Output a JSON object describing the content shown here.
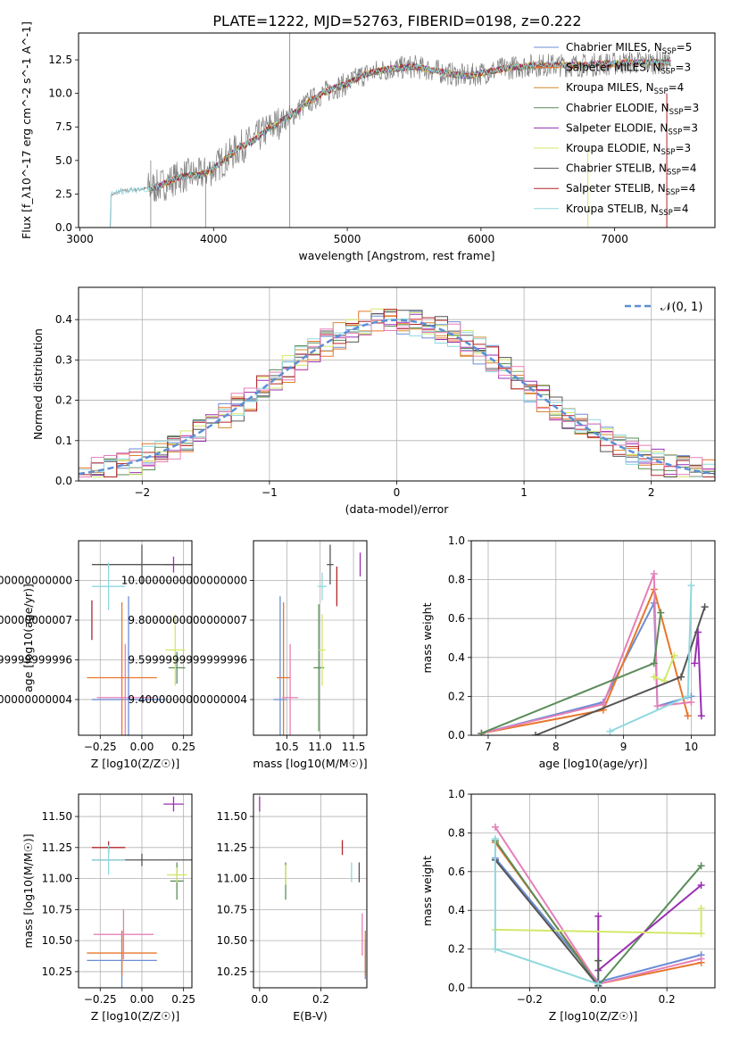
{
  "figure_title": "PLATE=1222, MJD=52763, FIBERID=0198, z=0.222",
  "colors": {
    "Chabrier MILES": "#6c8ed4",
    "Salpeter MILES": "#e8762b",
    "Kroupa MILES": "#d4872f",
    "Chabrier ELODIE": "#5b8c5a",
    "Salpeter ELODIE": "#9a2fb3",
    "Kroupa ELODIE": "#d2e86a",
    "Chabrier STELIB": "#555555",
    "Salpeter STELIB": "#b3262b",
    "Kroupa STELIB": "#8fd8e0",
    "pink": "#e57fb8",
    "grey": "#808080"
  },
  "chart_data": [
    {
      "id": "spectrum",
      "type": "line",
      "xlabel": "wavelength [Angstrom, rest frame]",
      "ylabel": "Flux [f_λ10^-17 erg cm^-2 s^-1 A^-1]",
      "xlim": [
        2990,
        7750
      ],
      "ylim": [
        0,
        14.5
      ],
      "xticks": [
        3000,
        4000,
        5000,
        6000,
        7000
      ],
      "yticks": [
        0.0,
        2.5,
        5.0,
        7.5,
        10.0,
        12.5
      ],
      "grid": false,
      "legend_position": "top-right",
      "legend": [
        "Chabrier MILES, N_SSP=5",
        "Salpeter MILES, N_SSP=3",
        "Kroupa MILES, N_SSP=4",
        "Chabrier ELODIE, N_SSP=3",
        "Salpeter ELODIE, N_SSP=3",
        "Kroupa ELODIE, N_SSP=3",
        "Chabrier STELIB, N_SSP=4",
        "Salpeter STELIB, N_SSP=4",
        "Kroupa STELIB, N_SSP=4"
      ],
      "observed_envelope": {
        "x": [
          3230,
          3300,
          3400,
          3500,
          3600,
          3700,
          3800,
          3900,
          4000,
          4100,
          4200,
          4300,
          4400,
          4500,
          4600,
          4700,
          4800,
          4900,
          5000,
          5100,
          5200,
          5300,
          5400,
          5500,
          5600,
          5700,
          5800,
          5900,
          6000,
          6100,
          6200,
          6300,
          6400,
          6500,
          6600,
          6700,
          6800,
          6900,
          7000,
          7100,
          7200,
          7300,
          7400
        ],
        "y": [
          2.4,
          2.7,
          2.8,
          2.9,
          3.1,
          3.6,
          3.9,
          3.9,
          4.4,
          5.2,
          6.0,
          6.5,
          7.3,
          7.9,
          8.5,
          9.3,
          9.9,
          10.4,
          10.7,
          11.3,
          11.6,
          11.8,
          11.9,
          12.0,
          11.8,
          11.6,
          11.4,
          11.3,
          11.5,
          11.7,
          11.9,
          12.0,
          12.1,
          12.1,
          12.1,
          12.1,
          12.1,
          12.2,
          12.2,
          12.3,
          12.3,
          12.3,
          12.3
        ]
      }
    },
    {
      "id": "residuals",
      "type": "line",
      "xlabel": "(data-model)/error",
      "ylabel": "Normed distribution",
      "xlim": [
        -2.5,
        2.5
      ],
      "ylim": [
        0,
        0.48
      ],
      "xticks": [
        -2,
        -1,
        0,
        1,
        2
      ],
      "yticks": [
        0.0,
        0.1,
        0.2,
        0.3,
        0.4
      ],
      "grid": true,
      "legend_position": "top-right",
      "legend": [
        "𝒩(0, 1)"
      ],
      "gaussian": {
        "mu": 0,
        "sigma": 1
      }
    },
    {
      "id": "age_vs_Z",
      "type": "scatter",
      "xlabel": "Z [log10(Z/Z☉)]",
      "ylabel": "age [log10(age/yr)]",
      "xlim": [
        -0.38,
        0.3
      ],
      "ylim": [
        9.22,
        10.2
      ],
      "xticks": [
        -0.25,
        0.0,
        0.25
      ],
      "yticks": [
        9.4,
        9.6,
        9.8,
        10.0
      ],
      "grid": true,
      "points": [
        {
          "c": "Chabrier MILES",
          "x": -0.08,
          "y": 9.4,
          "xerr": 0.22,
          "yerr": 0.52
        },
        {
          "c": "Salpeter MILES",
          "x": -0.12,
          "y": 9.51,
          "xerr": 0.21,
          "yerr": 0.38
        },
        {
          "c": "pink",
          "x": -0.1,
          "y": 9.41,
          "xerr": 0.17,
          "yerr": 0.27
        },
        {
          "c": "Chabrier ELODIE",
          "x": 0.21,
          "y": 9.56,
          "xerr": 0.05,
          "yerr": 0.08
        },
        {
          "c": "Salpeter ELODIE",
          "x": 0.19,
          "y": 10.08,
          "xerr": 0.06,
          "yerr": 0.04
        },
        {
          "c": "Kroupa ELODIE",
          "x": 0.2,
          "y": 9.65,
          "xerr": 0.06,
          "yerr": 0.18
        },
        {
          "c": "Chabrier STELIB",
          "x": 0.0,
          "y": 10.08,
          "xerr": 0.3,
          "yerr": 0.1
        },
        {
          "c": "Salpeter STELIB",
          "x": -0.3,
          "y": 9.8,
          "xerr": 0.0,
          "yerr": 0.1
        },
        {
          "c": "Kroupa STELIB",
          "x": -0.2,
          "y": 9.97,
          "xerr": 0.1,
          "yerr": 0.12
        }
      ]
    },
    {
      "id": "age_vs_mass",
      "type": "scatter",
      "xlabel": "mass [log10(M/M☉)]",
      "ylabel": "",
      "xlim": [
        10.0,
        11.7
      ],
      "ylim": [
        9.22,
        10.2
      ],
      "xticks": [
        10.5,
        11.0,
        11.5
      ],
      "yticks": [
        9.4,
        9.6,
        9.8,
        10.0
      ],
      "grid": true,
      "points": [
        {
          "c": "Chabrier MILES",
          "x": 10.4,
          "y": 9.4,
          "xerr": 0.1,
          "yerr": 0.52
        },
        {
          "c": "Salpeter MILES",
          "x": 10.45,
          "y": 9.51,
          "xerr": 0.1,
          "yerr": 0.38
        },
        {
          "c": "pink",
          "x": 10.55,
          "y": 9.41,
          "xerr": 0.12,
          "yerr": 0.27
        },
        {
          "c": "Chabrier ELODIE",
          "x": 10.98,
          "y": 9.56,
          "xerr": 0.08,
          "yerr": 0.32
        },
        {
          "c": "Salpeter ELODIE",
          "x": 11.6,
          "y": 10.08,
          "xerr": 0.0,
          "yerr": 0.06
        },
        {
          "c": "Kroupa ELODIE",
          "x": 11.03,
          "y": 9.65,
          "xerr": 0.05,
          "yerr": 0.18
        },
        {
          "c": "Chabrier STELIB",
          "x": 11.15,
          "y": 10.08,
          "xerr": 0.05,
          "yerr": 0.1
        },
        {
          "c": "Salpeter STELIB",
          "x": 11.25,
          "y": 9.97,
          "xerr": 0.0,
          "yerr": 0.1
        },
        {
          "c": "Kroupa STELIB",
          "x": 11.03,
          "y": 9.97,
          "xerr": 0.07,
          "yerr": 0.07
        }
      ]
    },
    {
      "id": "weight_vs_age",
      "type": "line",
      "xlabel": "age [log10(age/yr)]",
      "ylabel": "mass weight",
      "xlim": [
        6.75,
        10.35
      ],
      "ylim": [
        0,
        1.0
      ],
      "xticks": [
        7,
        8,
        9,
        10
      ],
      "yticks": [
        0.0,
        0.2,
        0.4,
        0.6,
        0.8,
        1.0
      ],
      "grid": true,
      "series": [
        {
          "c": "Chabrier MILES",
          "x": [
            6.9,
            8.7,
            9.45,
            9.5,
            10.0
          ],
          "y": [
            0.01,
            0.17,
            0.68,
            0.15,
            0.2
          ]
        },
        {
          "c": "Salpeter MILES",
          "x": [
            6.9,
            8.7,
            9.45,
            9.95
          ],
          "y": [
            0.01,
            0.13,
            0.75,
            0.1
          ]
        },
        {
          "c": "pink",
          "x": [
            6.9,
            8.7,
            9.45,
            9.5,
            10.0
          ],
          "y": [
            0.01,
            0.16,
            0.83,
            0.15,
            0.17
          ]
        },
        {
          "c": "Chabrier ELODIE",
          "x": [
            6.9,
            9.45,
            9.55
          ],
          "y": [
            0.01,
            0.37,
            0.63
          ]
        },
        {
          "c": "Salpeter ELODIE",
          "x": [
            10.05,
            10.1,
            10.15
          ],
          "y": [
            0.37,
            0.53,
            0.1
          ]
        },
        {
          "c": "Kroupa ELODIE",
          "x": [
            9.45,
            9.6,
            9.75
          ],
          "y": [
            0.3,
            0.28,
            0.41
          ]
        },
        {
          "c": "Chabrier STELIB",
          "x": [
            7.7,
            9.85,
            10.2
          ],
          "y": [
            0.0,
            0.3,
            0.66
          ]
        },
        {
          "c": "Kroupa STELIB",
          "x": [
            8.8,
            9.95,
            10.0
          ],
          "y": [
            0.02,
            0.2,
            0.77
          ]
        }
      ]
    },
    {
      "id": "mass_vs_Z",
      "type": "scatter",
      "xlabel": "Z [log10(Z/Z☉)]",
      "ylabel": "mass [log10(M/M☉)]",
      "xlim": [
        -0.38,
        0.3
      ],
      "ylim": [
        10.12,
        11.68
      ],
      "xticks": [
        -0.25,
        0.0,
        0.25
      ],
      "yticks": [
        10.25,
        10.5,
        10.75,
        11.0,
        11.25,
        11.5
      ],
      "grid": true,
      "points": [
        {
          "c": "Chabrier MILES",
          "x": -0.12,
          "y": 10.34,
          "xerr": 0.21,
          "yerr": 0.24
        },
        {
          "c": "Salpeter MILES",
          "x": -0.12,
          "y": 10.4,
          "xerr": 0.21,
          "yerr": 0.18
        },
        {
          "c": "pink",
          "x": -0.11,
          "y": 10.55,
          "xerr": 0.18,
          "yerr": 0.2
        },
        {
          "c": "Chabrier ELODIE",
          "x": 0.21,
          "y": 10.98,
          "xerr": 0.04,
          "yerr": 0.15
        },
        {
          "c": "Salpeter ELODIE",
          "x": 0.19,
          "y": 11.6,
          "xerr": 0.06,
          "yerr": 0.06
        },
        {
          "c": "Kroupa ELODIE",
          "x": 0.21,
          "y": 11.03,
          "xerr": 0.06,
          "yerr": 0.06
        },
        {
          "c": "Chabrier STELIB",
          "x": 0.0,
          "y": 11.15,
          "xerr": 0.3,
          "yerr": 0.05
        },
        {
          "c": "Salpeter STELIB",
          "x": -0.2,
          "y": 11.25,
          "xerr": 0.1,
          "yerr": 0.05
        },
        {
          "c": "Kroupa STELIB",
          "x": -0.2,
          "y": 11.15,
          "xerr": 0.1,
          "yerr": 0.12
        }
      ]
    },
    {
      "id": "mass_vs_ebv",
      "type": "scatter",
      "xlabel": "E(B-V)",
      "ylabel": "",
      "xlim": [
        -0.02,
        0.35
      ],
      "ylim": [
        10.12,
        11.68
      ],
      "xticks": [
        0.0,
        0.2
      ],
      "yticks": [
        10.25,
        10.5,
        10.75,
        11.0,
        11.25,
        11.5
      ],
      "grid": true,
      "points": [
        {
          "c": "Chabrier MILES",
          "x": 0.345,
          "y": 10.34,
          "xerr": 0.0,
          "yerr": 0.15
        },
        {
          "c": "Salpeter MILES",
          "x": 0.345,
          "y": 10.4,
          "xerr": 0.0,
          "yerr": 0.18
        },
        {
          "c": "pink",
          "x": 0.335,
          "y": 10.55,
          "xerr": 0.0,
          "yerr": 0.17
        },
        {
          "c": "Chabrier ELODIE",
          "x": 0.085,
          "y": 10.98,
          "xerr": 0.0,
          "yerr": 0.15
        },
        {
          "c": "Salpeter ELODIE",
          "x": 0.0,
          "y": 11.6,
          "xerr": 0.0,
          "yerr": 0.06
        },
        {
          "c": "Kroupa ELODIE",
          "x": 0.085,
          "y": 11.03,
          "xerr": 0.0,
          "yerr": 0.08
        },
        {
          "c": "Chabrier STELIB",
          "x": 0.325,
          "y": 11.05,
          "xerr": 0.0,
          "yerr": 0.08
        },
        {
          "c": "Salpeter STELIB",
          "x": 0.27,
          "y": 11.25,
          "xerr": 0.0,
          "yerr": 0.06
        },
        {
          "c": "Kroupa STELIB",
          "x": 0.3,
          "y": 11.05,
          "xerr": 0.0,
          "yerr": 0.08
        }
      ]
    },
    {
      "id": "weight_vs_Z",
      "type": "line",
      "xlabel": "Z [log10(Z/Z☉)]",
      "ylabel": "mass weight",
      "xlim": [
        -0.37,
        0.34
      ],
      "ylim": [
        0,
        1.0
      ],
      "xticks": [
        -0.2,
        0.0,
        0.2
      ],
      "yticks": [
        0.0,
        0.2,
        0.4,
        0.6,
        0.8,
        1.0
      ],
      "grid": true,
      "series": [
        {
          "c": "Chabrier MILES",
          "x": [
            -0.3,
            0.0,
            0.3
          ],
          "y": [
            0.67,
            0.03,
            0.17
          ]
        },
        {
          "c": "Salpeter MILES",
          "x": [
            -0.3,
            0.0,
            0.3
          ],
          "y": [
            0.75,
            0.02,
            0.13
          ]
        },
        {
          "c": "pink",
          "x": [
            -0.3,
            0.0,
            0.3
          ],
          "y": [
            0.83,
            0.02,
            0.15
          ]
        },
        {
          "c": "Chabrier ELODIE",
          "x": [
            -0.3,
            0.0,
            0.3
          ],
          "y": [
            0.76,
            0.01,
            0.63
          ]
        },
        {
          "c": "Salpeter ELODIE",
          "x": [
            0.0,
            0.0,
            0.3
          ],
          "y": [
            0.37,
            0.09,
            0.53
          ]
        },
        {
          "c": "Kroupa ELODIE",
          "x": [
            -0.3,
            0.3,
            0.3
          ],
          "y": [
            0.3,
            0.28,
            0.41
          ]
        },
        {
          "c": "Chabrier STELIB",
          "x": [
            -0.3,
            0.0,
            0.0
          ],
          "y": [
            0.66,
            0.01,
            0.14
          ]
        },
        {
          "c": "Kroupa STELIB",
          "x": [
            -0.3,
            -0.3,
            0.0
          ],
          "y": [
            0.77,
            0.2,
            0.02
          ]
        }
      ]
    }
  ]
}
